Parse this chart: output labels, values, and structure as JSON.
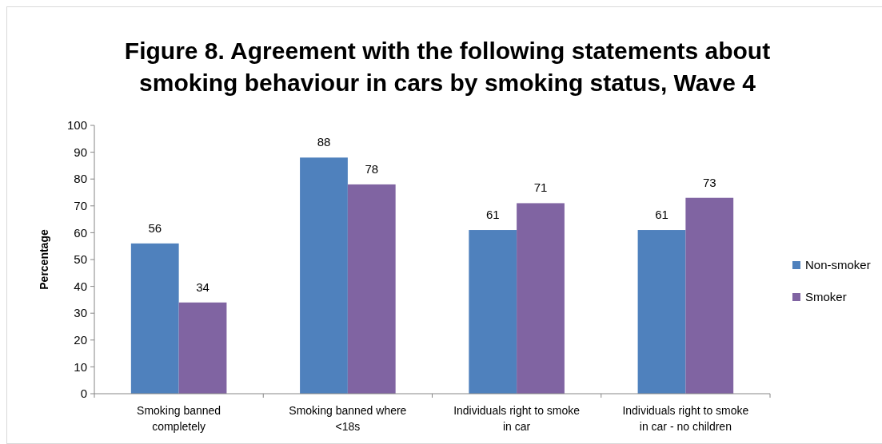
{
  "chart_data": {
    "type": "bar",
    "title": "Figure 8. Agreement with the following statements about smoking behaviour in cars by smoking status, Wave 4",
    "ylabel": "Percentage",
    "categories": [
      "Smoking banned completely",
      "Smoking banned where <18s",
      "Individuals right to smoke in car",
      "Individuals right to smoke in car - no children"
    ],
    "series": [
      {
        "name": "Non-smoker",
        "color": "#4f81bd",
        "values": [
          56,
          88,
          61,
          61
        ]
      },
      {
        "name": "Smoker",
        "color": "#8064a2",
        "values": [
          34,
          78,
          71,
          73
        ]
      }
    ],
    "ylim": [
      0,
      100
    ],
    "yticks": [
      0,
      10,
      20,
      30,
      40,
      50,
      60,
      70,
      80,
      90,
      100
    ],
    "grid": false,
    "legend": "right",
    "data_labels": true
  }
}
